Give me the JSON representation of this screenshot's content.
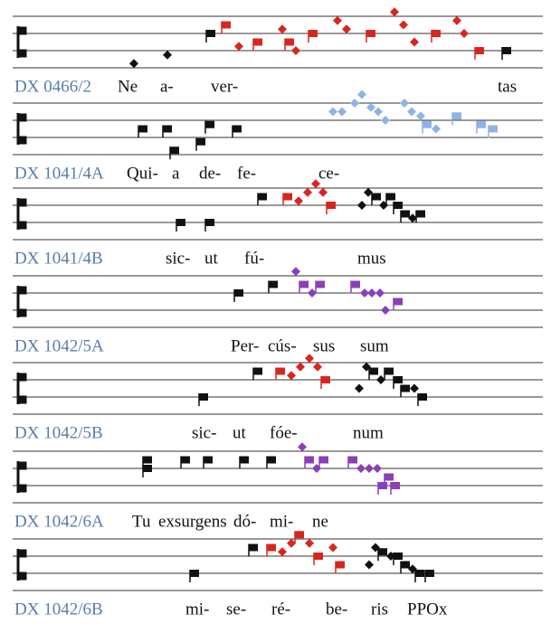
{
  "rows": [
    {
      "label": "DX 0466/2",
      "syllables": [
        "Ne",
        "a-",
        "ver-",
        "tas"
      ]
    },
    {
      "label": "DX 1041/4A",
      "syllables": [
        "Qui-",
        "a",
        "de-",
        "fe-",
        "ce-"
      ]
    },
    {
      "label": "DX 1041/4B",
      "syllables": [
        "sic-",
        "ut",
        "fú-",
        "mus"
      ]
    },
    {
      "label": "DX 1042/5A",
      "syllables": [
        "Per-",
        "cús-",
        "sus",
        "sum"
      ]
    },
    {
      "label": "DX 1042/5B",
      "syllables": [
        "sic-",
        "ut",
        "fóe-",
        "num"
      ]
    },
    {
      "label": "DX 1042/6A",
      "syllables": [
        "Tu",
        "exsurgens",
        "dó-",
        "mi-",
        "ne"
      ]
    },
    {
      "label": "DX 1042/6B",
      "syllables": [
        "mi-",
        "se-",
        "ré-",
        "be-",
        "ris",
        "PPOx"
      ]
    }
  ]
}
